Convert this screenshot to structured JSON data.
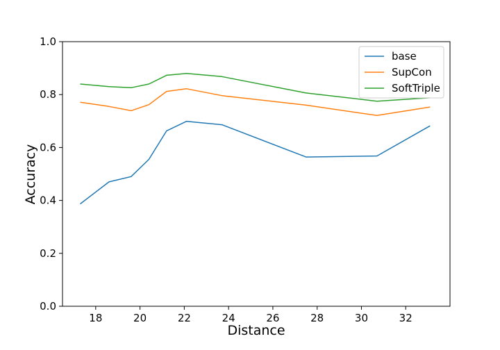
{
  "chart_data": {
    "type": "line",
    "title": "",
    "xlabel": "Distance",
    "ylabel": "Accuracy",
    "xlim": [
      16.5,
      34
    ],
    "ylim": [
      0.0,
      1.0
    ],
    "xticks": [
      18,
      20,
      22,
      24,
      26,
      28,
      30,
      32
    ],
    "yticks": [
      0.0,
      0.2,
      0.4,
      0.6,
      0.8,
      1.0
    ],
    "xtick_labels": [
      "18",
      "20",
      "22",
      "24",
      "26",
      "28",
      "30",
      "32"
    ],
    "ytick_labels": [
      "0.0",
      "0.2",
      "0.4",
      "0.6",
      "0.8",
      "1.0"
    ],
    "grid": false,
    "legend_position": "top-right",
    "x": [
      17.3,
      18.6,
      19.6,
      20.4,
      21.2,
      22.1,
      23.7,
      27.5,
      30.7,
      33.1
    ],
    "series": [
      {
        "name": "base",
        "color": "#1f77b4",
        "values": [
          0.387,
          0.47,
          0.49,
          0.555,
          0.663,
          0.699,
          0.686,
          0.564,
          0.568,
          0.682
        ]
      },
      {
        "name": "SupCon",
        "color": "#ff7f0e",
        "values": [
          0.771,
          0.755,
          0.739,
          0.762,
          0.812,
          0.822,
          0.796,
          0.76,
          0.721,
          0.753
        ]
      },
      {
        "name": "SoftTriple",
        "color": "#2ca02c",
        "values": [
          0.84,
          0.83,
          0.826,
          0.84,
          0.873,
          0.88,
          0.868,
          0.806,
          0.775,
          0.788
        ]
      }
    ]
  }
}
